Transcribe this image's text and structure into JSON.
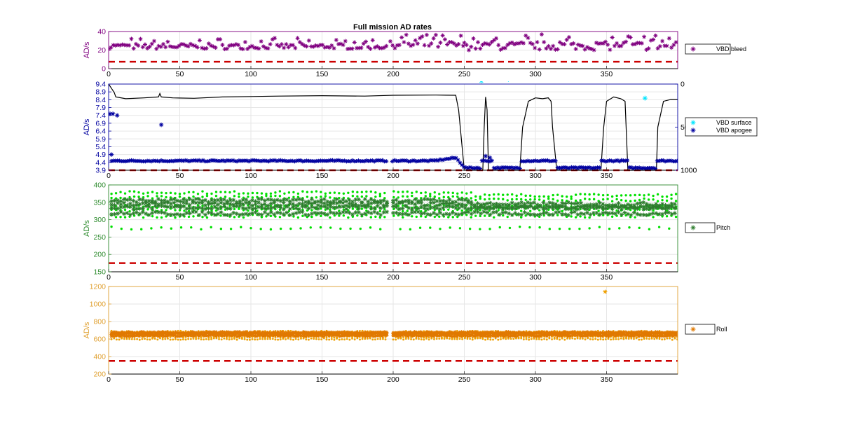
{
  "figure_title": "Full mission AD rates",
  "colors": {
    "purple": "#800080",
    "navy": "#0000a0",
    "cyan": "#00e5ff",
    "black": "#000000",
    "green_light": "#00e000",
    "green_dark": "#2e7d2e",
    "orange": "#f0a000",
    "orange_dark": "#e07800",
    "threshold": "#cc0000",
    "grid": "#e6e6e6",
    "axis_green": "#2e8b2e",
    "axis_orange": "#e0a030"
  },
  "chart_data": [
    {
      "type": "scatter",
      "ylabel": "AD/s",
      "xlim": [
        0,
        400
      ],
      "ylim": [
        0,
        40
      ],
      "xticks": [
        "0",
        "50",
        "100",
        "150",
        "200",
        "250",
        "300",
        "350"
      ],
      "yticks": [
        "0",
        "20",
        "40"
      ],
      "series": [
        {
          "name": "VBD bleed",
          "marker": "asterisk",
          "color": "#800080",
          "segments": [
            {
              "x_range": [
                0,
                196
              ],
              "y_min": 21,
              "y_max": 33
            },
            {
              "x_range": [
                198,
                250
              ],
              "y_min": 22,
              "y_max": 37
            },
            {
              "x_range": [
                250,
                400
              ],
              "y_min": 20,
              "y_max": 38
            }
          ]
        }
      ],
      "threshold": {
        "y": 7.5,
        "style": "dashed",
        "color": "#cc0000"
      },
      "grid": true,
      "legend_position": "right"
    },
    {
      "type": "scatter",
      "ylabel": "AD/s",
      "xlim": [
        0,
        400
      ],
      "ylim": [
        3.9,
        9.4
      ],
      "xticks": [
        "0",
        "50",
        "100",
        "150",
        "200",
        "250",
        "300",
        "350"
      ],
      "yticks": [
        "3.9",
        "4.4",
        "4.9",
        "5.4",
        "5.9",
        "6.4",
        "6.9",
        "7.4",
        "7.9",
        "8.4",
        "8.9",
        "9.4"
      ],
      "y2ticks": [
        "0",
        "500",
        "1000"
      ],
      "y2lim": [
        1000,
        0
      ],
      "series": [
        {
          "name": "VBD surface",
          "marker": "asterisk",
          "color": "#00e5ff",
          "x": [
            262,
            281,
            377
          ],
          "y": [
            9.6,
            9.7,
            8.5
          ]
        },
        {
          "name": "VBD apogee",
          "marker": "asterisk",
          "color": "#0000a0",
          "outliers": {
            "x": [
              1,
              3,
              6,
              2,
              37,
              265,
              268
            ],
            "y": [
              7.5,
              7.5,
              7.4,
              4.9,
              6.8,
              4.8,
              4.7
            ]
          }
        },
        {
          "marker": "line",
          "color": "#000000",
          "axis": "right",
          "x": [
            0,
            2,
            4,
            5,
            12,
            25,
            35,
            36,
            37,
            45,
            60,
            80,
            100,
            120,
            150,
            180,
            200,
            230,
            244,
            246,
            250,
            263,
            264,
            265,
            266,
            267,
            289,
            291,
            295,
            300,
            305,
            309,
            311,
            312,
            315,
            320,
            340,
            346,
            348,
            350,
            355,
            360,
            363,
            365,
            370,
            380,
            385,
            386,
            390,
            395,
            400
          ],
          "y": [
            0,
            50,
            100,
            150,
            170,
            160,
            150,
            110,
            150,
            160,
            165,
            150,
            145,
            140,
            135,
            140,
            130,
            128,
            130,
            300,
            1000,
            1000,
            500,
            150,
            300,
            1000,
            1000,
            500,
            200,
            160,
            170,
            160,
            200,
            500,
            1000,
            1000,
            1000,
            1000,
            500,
            200,
            150,
            170,
            200,
            1000,
            1000,
            1000,
            1000,
            500,
            200,
            180,
            180
          ]
        }
      ],
      "threshold": {
        "y": 3.9,
        "style": "dashed",
        "color": "#cc0000"
      },
      "grid": true,
      "legend_position": "right"
    },
    {
      "type": "scatter",
      "ylabel": "AD/s",
      "xlim": [
        0,
        400
      ],
      "ylim": [
        150,
        400
      ],
      "xticks": [
        "0",
        "50",
        "100",
        "150",
        "200",
        "250",
        "300",
        "350"
      ],
      "yticks": [
        "150",
        "200",
        "250",
        "300",
        "350",
        "400"
      ],
      "series": [
        {
          "name": "Pitch",
          "marker": "asterisk",
          "color": "#2e7d2e",
          "bands": [
            335,
            345,
            355,
            318
          ]
        },
        {
          "marker": "dot",
          "color": "#00e000",
          "bands": [
            378,
            365,
            338,
            328,
            310,
            276
          ]
        }
      ],
      "threshold": {
        "y": 175,
        "style": "dashed",
        "color": "#cc0000"
      },
      "grid": true,
      "legend_position": "right"
    },
    {
      "type": "scatter",
      "ylabel": "AD/s",
      "xlim": [
        0,
        400
      ],
      "ylim": [
        200,
        1200
      ],
      "xticks": [
        "0",
        "50",
        "100",
        "150",
        "200",
        "250",
        "300",
        "350"
      ],
      "yticks": [
        "200",
        "400",
        "600",
        "800",
        "1000",
        "1200"
      ],
      "series": [
        {
          "name": "Roll",
          "marker": "asterisk",
          "color": "#e07800",
          "bands": [
            640,
            660,
            675
          ]
        },
        {
          "marker": "dot",
          "color": "#f0a000",
          "bands": [
            600,
            625,
            650,
            685
          ],
          "outliers": {
            "x": [
              349
            ],
            "y": [
              1140
            ]
          }
        }
      ],
      "threshold": {
        "y": 350,
        "style": "dashed",
        "color": "#cc0000"
      },
      "grid": true,
      "legend_position": "right"
    }
  ]
}
